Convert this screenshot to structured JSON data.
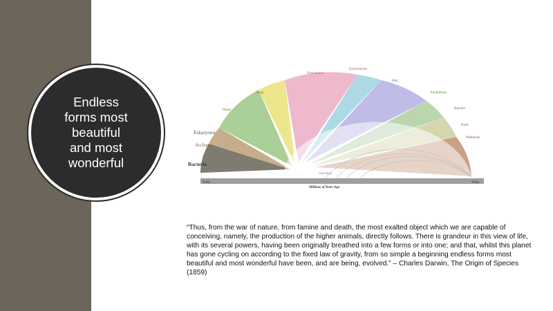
{
  "slide": {
    "title": "Endless\nforms most\nbeautiful\nand most\nwonderful",
    "quote": "“Thus, from the war of nature, from famine and death, the most exalted object which we are capable of conceiving, namely, the production of the higher animals, directly follows. There is grandeur in this view of life, with its several powers, having been originally breathed into a few forms or into one; and that, whilst this planet has gone cycling on according to the fixed law of gravity, from so simple a beginning endless forms most beautiful and most wonderful have been, and are being, evolved.” – Charles Darwin, The Origin of Species  (1859)"
  },
  "figure": {
    "groups": {
      "bacteria": "Bacteria",
      "archaea": "Archaea",
      "eukaryotes": "Eukaryotes",
      "plants": "Plants",
      "fungi": "Fungi",
      "protostomes": "Protostomes",
      "echinoderms": "Echinoderms",
      "fish": "Fish",
      "amphibians": "Amphibians",
      "reptiles": "Reptiles",
      "birds": "Birds",
      "mammals": "Mammals"
    },
    "axis_label": "Millions of Years Ago",
    "today_left": "Today",
    "today_right": "Today",
    "earth_birth": "Earth Birth",
    "colors": {
      "bacteria": "#5e5a4c",
      "archaea": "#b89a70",
      "plants": "#8dbf74",
      "fungi": "#e8e070",
      "protostomes": "#e79ab8",
      "echinoderms": "#9ad0e0",
      "fish": "#a9a6df",
      "amphibians": "#9ec48d",
      "reptiles": "#c9cd9a",
      "mammals": "#b8825e"
    }
  }
}
